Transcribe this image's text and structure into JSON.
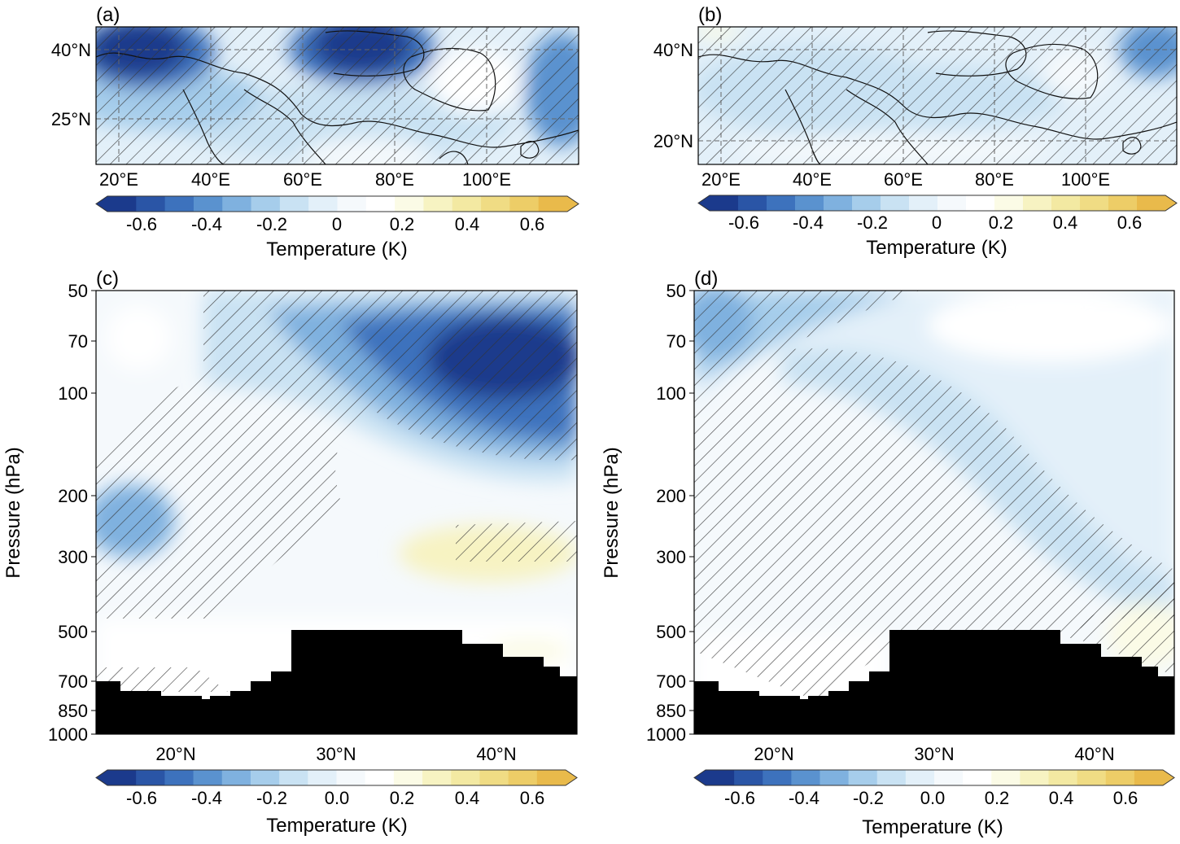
{
  "colors": {
    "scale": [
      "#1b3a8c",
      "#2a55a6",
      "#3d72bd",
      "#5a92cf",
      "#7fb1df",
      "#a6cdeb",
      "#c9e2f3",
      "#e3f0f9",
      "#f5f9fc",
      "#ffffff",
      "#fbfbe6",
      "#f7f3c2",
      "#f3e9a2",
      "#f0dc84",
      "#edcd67",
      "#e9ba4b"
    ],
    "land_black": "#000000",
    "grid": "#777777",
    "hatch": "#333333"
  },
  "colorbar": {
    "ticks": [
      "-0.6",
      "-0.4",
      "-0.2",
      "0",
      "0.2",
      "0.4",
      "0.6"
    ],
    "ticks_cd": [
      "-0.6",
      "-0.4",
      "-0.2",
      "0.0",
      "0.2",
      "0.4",
      "0.6"
    ],
    "label": "Temperature (K)"
  },
  "chart_data": [
    {
      "panel": "(a)",
      "type": "heatmap",
      "xlabel": "",
      "ylabel": "",
      "x_ticks": [
        "20°E",
        "40°E",
        "60°E",
        "80°E",
        "100°E"
      ],
      "y_ticks": [
        "40°N",
        "25°N"
      ],
      "lon_range": [
        15,
        120
      ],
      "lat_range": [
        15,
        44
      ],
      "anomalies": [
        {
          "lon": 28,
          "lat": 40,
          "value": -0.6
        },
        {
          "lon": 73,
          "lat": 40,
          "value": -0.6
        },
        {
          "lon": 116,
          "lat": 33,
          "value": -0.35
        },
        {
          "lon": 50,
          "lat": 28,
          "value": -0.2
        },
        {
          "lon": 100,
          "lat": 32,
          "value": 0.0
        }
      ]
    },
    {
      "panel": "(b)",
      "type": "heatmap",
      "xlabel": "",
      "ylabel": "",
      "x_ticks": [
        "20°E",
        "40°E",
        "60°E",
        "80°E",
        "100°E"
      ],
      "y_ticks": [
        "40°N",
        "20°N"
      ],
      "lon_range": [
        15,
        120
      ],
      "lat_range": [
        15,
        44
      ],
      "anomalies": [
        {
          "lon": 117,
          "lat": 42,
          "value": -0.4
        },
        {
          "lon": 40,
          "lat": 35,
          "value": -0.15
        },
        {
          "lon": 75,
          "lat": 30,
          "value": -0.1
        },
        {
          "lon": 18,
          "lat": 44,
          "value": 0.1
        }
      ]
    },
    {
      "panel": "(c)",
      "type": "heatmap",
      "xlabel": "",
      "ylabel": "Pressure (hPa)",
      "x_ticks": [
        "20°N",
        "30°N",
        "40°N"
      ],
      "y_ticks": [
        "50",
        "70",
        "100",
        "200",
        "300",
        "500",
        "700",
        "850",
        "1000"
      ],
      "lat_range": [
        15,
        45
      ],
      "pressure_range": [
        50,
        1000
      ],
      "anomalies": [
        {
          "lat": 39,
          "p": 85,
          "value": -0.65
        },
        {
          "lat": 17,
          "p": 230,
          "value": -0.3
        },
        {
          "lat": 40,
          "p": 300,
          "value": 0.15
        },
        {
          "lat": 28,
          "p": 110,
          "value": -0.2
        }
      ]
    },
    {
      "panel": "(d)",
      "type": "heatmap",
      "xlabel": "",
      "ylabel": "Pressure (hPa)",
      "x_ticks": [
        "20°N",
        "30°N",
        "40°N"
      ],
      "y_ticks": [
        "50",
        "70",
        "100",
        "200",
        "300",
        "500",
        "700",
        "850",
        "1000"
      ],
      "lat_range": [
        15,
        45
      ],
      "pressure_range": [
        50,
        1000
      ],
      "anomalies": [
        {
          "lat": 16,
          "p": 60,
          "value": -0.4
        },
        {
          "lat": 30,
          "p": 200,
          "value": -0.15
        },
        {
          "lat": 42,
          "p": 600,
          "value": 0.05
        }
      ]
    }
  ]
}
